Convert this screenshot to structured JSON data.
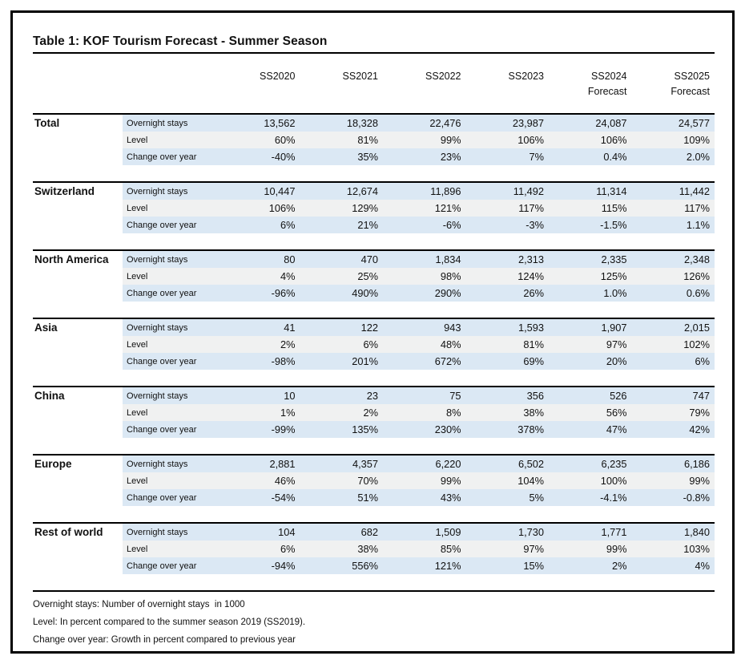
{
  "title": "Table 1: KOF Tourism Forecast - Summer Season",
  "columns": [
    "SS2020",
    "SS2021",
    "SS2022",
    "SS2023",
    "SS2024",
    "SS2025"
  ],
  "column_sublabels": [
    "",
    "",
    "",
    "",
    "Forecast",
    "Forecast"
  ],
  "row_labels": [
    "Overnight stays",
    "Level",
    "Change over year"
  ],
  "groups": [
    {
      "region": "Total",
      "rows": [
        {
          "label": "Overnight stays",
          "values": [
            "13,562",
            "18,328",
            "22,476",
            "23,987",
            "24,087",
            "24,577"
          ]
        },
        {
          "label": "Level",
          "values": [
            "60%",
            "81%",
            "99%",
            "106%",
            "106%",
            "109%"
          ]
        },
        {
          "label": "Change over year",
          "values": [
            "-40%",
            "35%",
            "23%",
            "7%",
            "0.4%",
            "2.0%"
          ]
        }
      ]
    },
    {
      "region": "Switzerland",
      "rows": [
        {
          "label": "Overnight stays",
          "values": [
            "10,447",
            "12,674",
            "11,896",
            "11,492",
            "11,314",
            "11,442"
          ]
        },
        {
          "label": "Level",
          "values": [
            "106%",
            "129%",
            "121%",
            "117%",
            "115%",
            "117%"
          ]
        },
        {
          "label": "Change over year",
          "values": [
            "6%",
            "21%",
            "-6%",
            "-3%",
            "-1.5%",
            "1.1%"
          ]
        }
      ]
    },
    {
      "region": "North America",
      "rows": [
        {
          "label": "Overnight stays",
          "values": [
            "80",
            "470",
            "1,834",
            "2,313",
            "2,335",
            "2,348"
          ]
        },
        {
          "label": "Level",
          "values": [
            "4%",
            "25%",
            "98%",
            "124%",
            "125%",
            "126%"
          ]
        },
        {
          "label": "Change over year",
          "values": [
            "-96%",
            "490%",
            "290%",
            "26%",
            "1.0%",
            "0.6%"
          ]
        }
      ]
    },
    {
      "region": "Asia",
      "rows": [
        {
          "label": "Overnight stays",
          "values": [
            "41",
            "122",
            "943",
            "1,593",
            "1,907",
            "2,015"
          ]
        },
        {
          "label": "Level",
          "values": [
            "2%",
            "6%",
            "48%",
            "81%",
            "97%",
            "102%"
          ]
        },
        {
          "label": "Change over year",
          "values": [
            "-98%",
            "201%",
            "672%",
            "69%",
            "20%",
            "6%"
          ]
        }
      ]
    },
    {
      "region": "China",
      "rows": [
        {
          "label": "Overnight stays",
          "values": [
            "10",
            "23",
            "75",
            "356",
            "526",
            "747"
          ]
        },
        {
          "label": "Level",
          "values": [
            "1%",
            "2%",
            "8%",
            "38%",
            "56%",
            "79%"
          ]
        },
        {
          "label": "Change over year",
          "values": [
            "-99%",
            "135%",
            "230%",
            "378%",
            "47%",
            "42%"
          ]
        }
      ]
    },
    {
      "region": "Europe",
      "rows": [
        {
          "label": "Overnight stays",
          "values": [
            "2,881",
            "4,357",
            "6,220",
            "6,502",
            "6,235",
            "6,186"
          ]
        },
        {
          "label": "Level",
          "values": [
            "46%",
            "70%",
            "99%",
            "104%",
            "100%",
            "99%"
          ]
        },
        {
          "label": "Change over year",
          "values": [
            "-54%",
            "51%",
            "43%",
            "5%",
            "-4.1%",
            "-0.8%"
          ]
        }
      ]
    },
    {
      "region": "Rest of world",
      "rows": [
        {
          "label": "Overnight stays",
          "values": [
            "104",
            "682",
            "1,509",
            "1,730",
            "1,771",
            "1,840"
          ]
        },
        {
          "label": "Level",
          "values": [
            "6%",
            "38%",
            "85%",
            "97%",
            "99%",
            "103%"
          ]
        },
        {
          "label": "Change over year",
          "values": [
            "-94%",
            "556%",
            "121%",
            "15%",
            "2%",
            "4%"
          ]
        }
      ]
    }
  ],
  "footnotes": [
    "Overnight stays: Number of overnight stays  in 1000",
    "Level: In percent compared to the summer season 2019 (SS2019).",
    "Change over year: Growth in percent compared to previous year"
  ],
  "colors": {
    "band_blue": "#dbe8f4",
    "band_gray": "#f0f1f1",
    "rule": "#000000",
    "text": "#111111"
  }
}
